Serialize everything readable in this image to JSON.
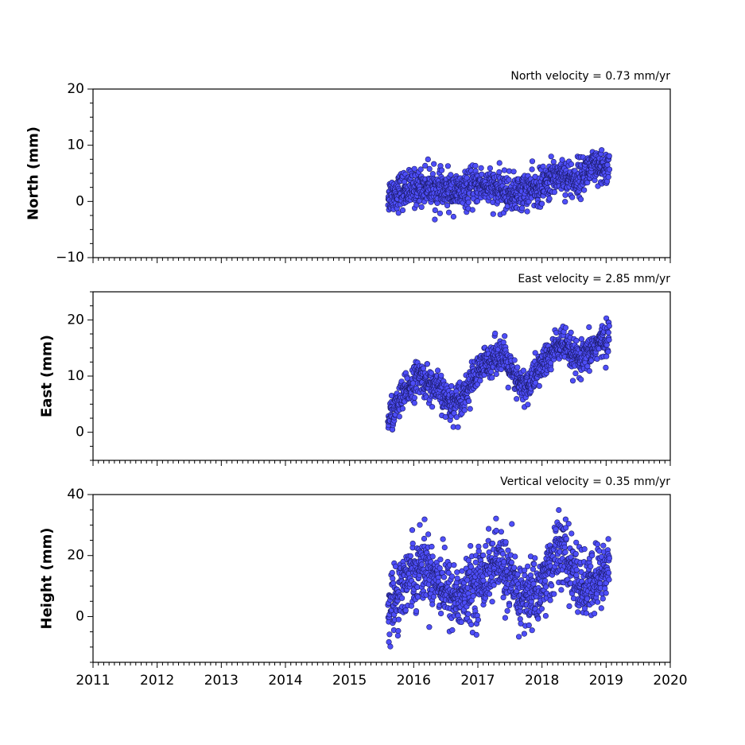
{
  "chart_data": [
    {
      "type": "scatter",
      "velocity_label": "North velocity = 0.73 mm/yr",
      "ylabel": "North (mm)",
      "xlim": [
        2011,
        2020
      ],
      "ylim": [
        -10,
        20
      ],
      "yticks": [
        -10,
        0,
        10,
        20
      ],
      "ytick_labels": [
        "−10",
        "0",
        "10",
        "20"
      ],
      "show_xtick_labels": false,
      "marker_color": "#4e4ef8",
      "edge_color": "#1a1a66",
      "series": [
        {
          "x": [
            2015.6,
            2015.7,
            2015.8,
            2015.9,
            2016.0,
            2016.1,
            2016.2,
            2016.3,
            2016.4,
            2016.5,
            2016.6,
            2016.7,
            2016.8,
            2016.9,
            2017.0,
            2017.1,
            2017.2,
            2017.3,
            2017.4,
            2017.5,
            2017.6,
            2017.7,
            2017.8,
            2017.9,
            2018.0,
            2018.1,
            2018.2,
            2018.3,
            2018.4,
            2018.5,
            2018.6,
            2018.7,
            2018.8,
            2018.9,
            2019.0,
            2019.05
          ],
          "y": [
            1.0,
            1.5,
            2.0,
            2.2,
            2.3,
            2.6,
            3.0,
            2.5,
            2.0,
            1.8,
            2.0,
            1.6,
            1.8,
            2.5,
            3.0,
            2.8,
            2.5,
            2.0,
            1.8,
            1.5,
            1.2,
            1.8,
            2.2,
            2.0,
            2.5,
            3.5,
            4.5,
            5.0,
            4.2,
            3.8,
            4.5,
            5.5,
            6.0,
            5.5,
            5.8,
            6.2
          ],
          "spread": 1.6
        }
      ]
    },
    {
      "type": "scatter",
      "velocity_label": "East velocity = 2.85 mm/yr",
      "ylabel": "East (mm)",
      "xlim": [
        2011,
        2020
      ],
      "ylim": [
        -5,
        25
      ],
      "yticks": [
        0,
        10,
        20
      ],
      "ytick_labels": [
        "0",
        "10",
        "20"
      ],
      "show_xtick_labels": false,
      "marker_color": "#4e4ef8",
      "edge_color": "#1a1a66",
      "series": [
        {
          "x": [
            2015.6,
            2015.7,
            2015.8,
            2015.9,
            2016.0,
            2016.1,
            2016.2,
            2016.3,
            2016.4,
            2016.5,
            2016.6,
            2016.7,
            2016.8,
            2016.9,
            2017.0,
            2017.1,
            2017.2,
            2017.3,
            2017.4,
            2017.5,
            2017.6,
            2017.7,
            2017.8,
            2017.9,
            2018.0,
            2018.1,
            2018.2,
            2018.3,
            2018.4,
            2018.5,
            2018.6,
            2018.7,
            2018.8,
            2018.9,
            2019.0,
            2019.05
          ],
          "y": [
            2.5,
            4.0,
            6.0,
            7.5,
            9.0,
            10.0,
            9.0,
            8.0,
            7.5,
            6.0,
            5.0,
            6.0,
            7.0,
            9.0,
            10.5,
            12.0,
            13.0,
            14.0,
            13.5,
            11.0,
            9.0,
            8.0,
            8.5,
            10.5,
            12.0,
            13.0,
            15.0,
            16.0,
            14.5,
            13.5,
            12.5,
            13.5,
            15.0,
            16.0,
            16.5,
            17.0
          ],
          "spread": 1.5
        }
      ]
    },
    {
      "type": "scatter",
      "velocity_label": "Vertical velocity = 0.35 mm/yr",
      "ylabel": "Height (mm)",
      "xlim": [
        2011,
        2020
      ],
      "ylim": [
        -15,
        40
      ],
      "yticks": [
        0,
        20,
        40
      ],
      "ytick_labels": [
        "0",
        "20",
        "40"
      ],
      "xticks": [
        2011,
        2012,
        2013,
        2014,
        2015,
        2016,
        2017,
        2018,
        2019,
        2020
      ],
      "xtick_labels": [
        "2011",
        "2012",
        "2013",
        "2014",
        "2015",
        "2016",
        "2017",
        "2018",
        "2019",
        "2020"
      ],
      "show_xtick_labels": true,
      "marker_color": "#4e4ef8",
      "edge_color": "#1a1a66",
      "series": [
        {
          "x": [
            2015.6,
            2015.7,
            2015.8,
            2015.9,
            2016.0,
            2016.1,
            2016.2,
            2016.3,
            2016.4,
            2016.5,
            2016.6,
            2016.7,
            2016.8,
            2016.9,
            2017.0,
            2017.1,
            2017.2,
            2017.3,
            2017.4,
            2017.5,
            2017.6,
            2017.7,
            2017.8,
            2017.9,
            2018.0,
            2018.1,
            2018.2,
            2018.3,
            2018.4,
            2018.5,
            2018.6,
            2018.7,
            2018.8,
            2018.9,
            2019.0,
            2019.05
          ],
          "y": [
            2.0,
            6.0,
            10.0,
            13.0,
            15.0,
            17.0,
            16.0,
            14.0,
            12.0,
            9.0,
            7.0,
            6.0,
            7.0,
            9.0,
            11.0,
            14.0,
            16.0,
            18.0,
            16.0,
            12.0,
            8.0,
            6.0,
            7.0,
            8.0,
            10.0,
            15.0,
            20.0,
            22.0,
            18.0,
            14.0,
            10.0,
            9.0,
            11.0,
            13.0,
            15.0,
            16.0
          ],
          "spread": 5.5
        }
      ]
    }
  ]
}
